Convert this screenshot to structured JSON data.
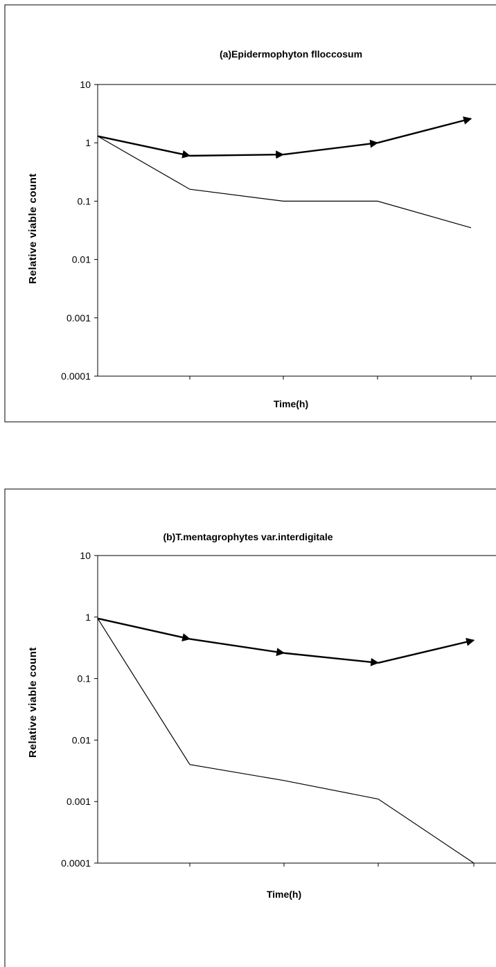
{
  "chart_data": [
    {
      "type": "line",
      "title": "(a)Epidermophyton flloccosum",
      "xlabel": "Time(h)",
      "ylabel": "Relative viable count",
      "y_scale": "log",
      "ylim": [
        0.0001,
        10
      ],
      "y_ticks": [
        "10",
        "1",
        "0.1",
        "0.01",
        "0.001",
        "0.0001"
      ],
      "x_categories": 5,
      "grid": "horizontal at 10",
      "series": [
        {
          "style": "bold-arrow",
          "color": "#000000",
          "x": [
            0,
            1,
            2,
            3,
            4
          ],
          "values": [
            1.3,
            0.6,
            0.63,
            1.0,
            2.6
          ]
        },
        {
          "style": "thin",
          "color": "#000000",
          "x": [
            0,
            1,
            2,
            3,
            4
          ],
          "values": [
            1.3,
            0.16,
            0.1,
            0.1,
            0.035
          ]
        }
      ]
    },
    {
      "type": "line",
      "title": "(b)T.mentagrophytes var.interdigitale",
      "xlabel": "Time(h)",
      "ylabel": "Relative viable count",
      "y_scale": "log",
      "ylim": [
        0.0001,
        10
      ],
      "y_ticks": [
        "10",
        "1",
        "0.1",
        "0.01",
        "0.001",
        "0.0001"
      ],
      "x_categories": 5,
      "grid": "horizontal at 10",
      "series": [
        {
          "style": "bold-arrow",
          "color": "#000000",
          "x": [
            0,
            1,
            2,
            3,
            4
          ],
          "values": [
            0.95,
            0.44,
            0.26,
            0.18,
            0.42
          ]
        },
        {
          "style": "thin",
          "color": "#000000",
          "x": [
            0,
            1,
            2,
            3,
            4
          ],
          "values": [
            0.95,
            0.004,
            0.0022,
            0.0011,
            0.0001
          ]
        }
      ]
    }
  ]
}
